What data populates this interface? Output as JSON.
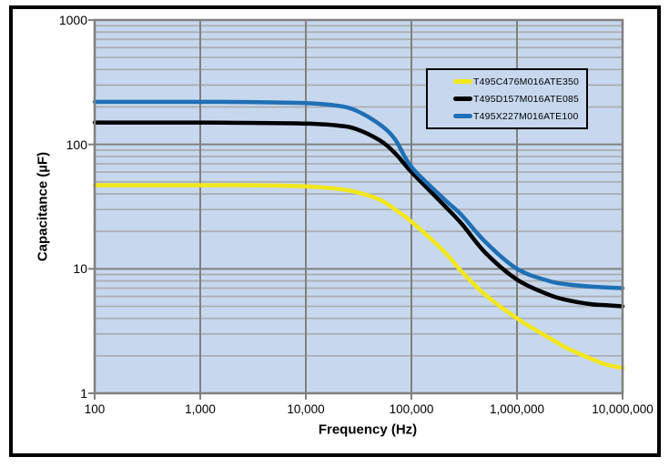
{
  "chart_data": {
    "type": "line",
    "title": "",
    "xlabel": "Frequency (Hz)",
    "ylabel": "Capacitance (µF)",
    "x_scale": "log",
    "y_scale": "log",
    "xlim": [
      100,
      10000000
    ],
    "ylim": [
      1,
      1000
    ],
    "x_ticks": [
      100,
      1000,
      10000,
      100000,
      1000000,
      10000000
    ],
    "x_tick_labels": [
      "100",
      "1,000",
      "10,000",
      "100,000",
      "1,000,000",
      "10,000,000"
    ],
    "y_ticks": [
      1,
      10,
      100,
      1000
    ],
    "y_tick_labels": [
      "1",
      "10",
      "100",
      "1000"
    ],
    "grid": {
      "major_color": "#808080",
      "minor_color": "#ABAEB3",
      "vertical_minor": false,
      "horizontal_minor": true
    },
    "plot_background": "#C7D8EE",
    "plot_border_color": "#808080",
    "legend_position": "top-right",
    "x": [
      100,
      300,
      1000,
      3000,
      10000,
      20000,
      30000,
      50000,
      70000,
      100000,
      200000,
      300000,
      500000,
      1000000,
      2000000,
      3000000,
      5000000,
      7000000,
      10000000
    ],
    "series": [
      {
        "name": "T495C476M016ATE350",
        "color": "#F2E71C",
        "values": [
          47,
          47,
          47,
          47,
          46,
          44,
          41.5,
          36,
          30,
          24,
          14,
          9.5,
          6.2,
          4.0,
          2.8,
          2.3,
          1.9,
          1.7,
          1.6
        ]
      },
      {
        "name": "T495D157M016ATE085",
        "color": "#000000",
        "values": [
          150,
          150,
          150,
          149,
          147,
          142,
          133,
          108,
          85,
          60,
          33,
          23,
          13.5,
          8.2,
          6.2,
          5.6,
          5.2,
          5.1,
          5.0
        ]
      },
      {
        "name": "T495X227M016ATE100",
        "color": "#1F6FB5",
        "values": [
          220,
          220,
          220,
          219,
          215,
          205,
          187,
          145,
          110,
          66,
          37,
          27,
          16.5,
          10,
          8.0,
          7.5,
          7.2,
          7.1,
          7.0
        ]
      }
    ]
  }
}
